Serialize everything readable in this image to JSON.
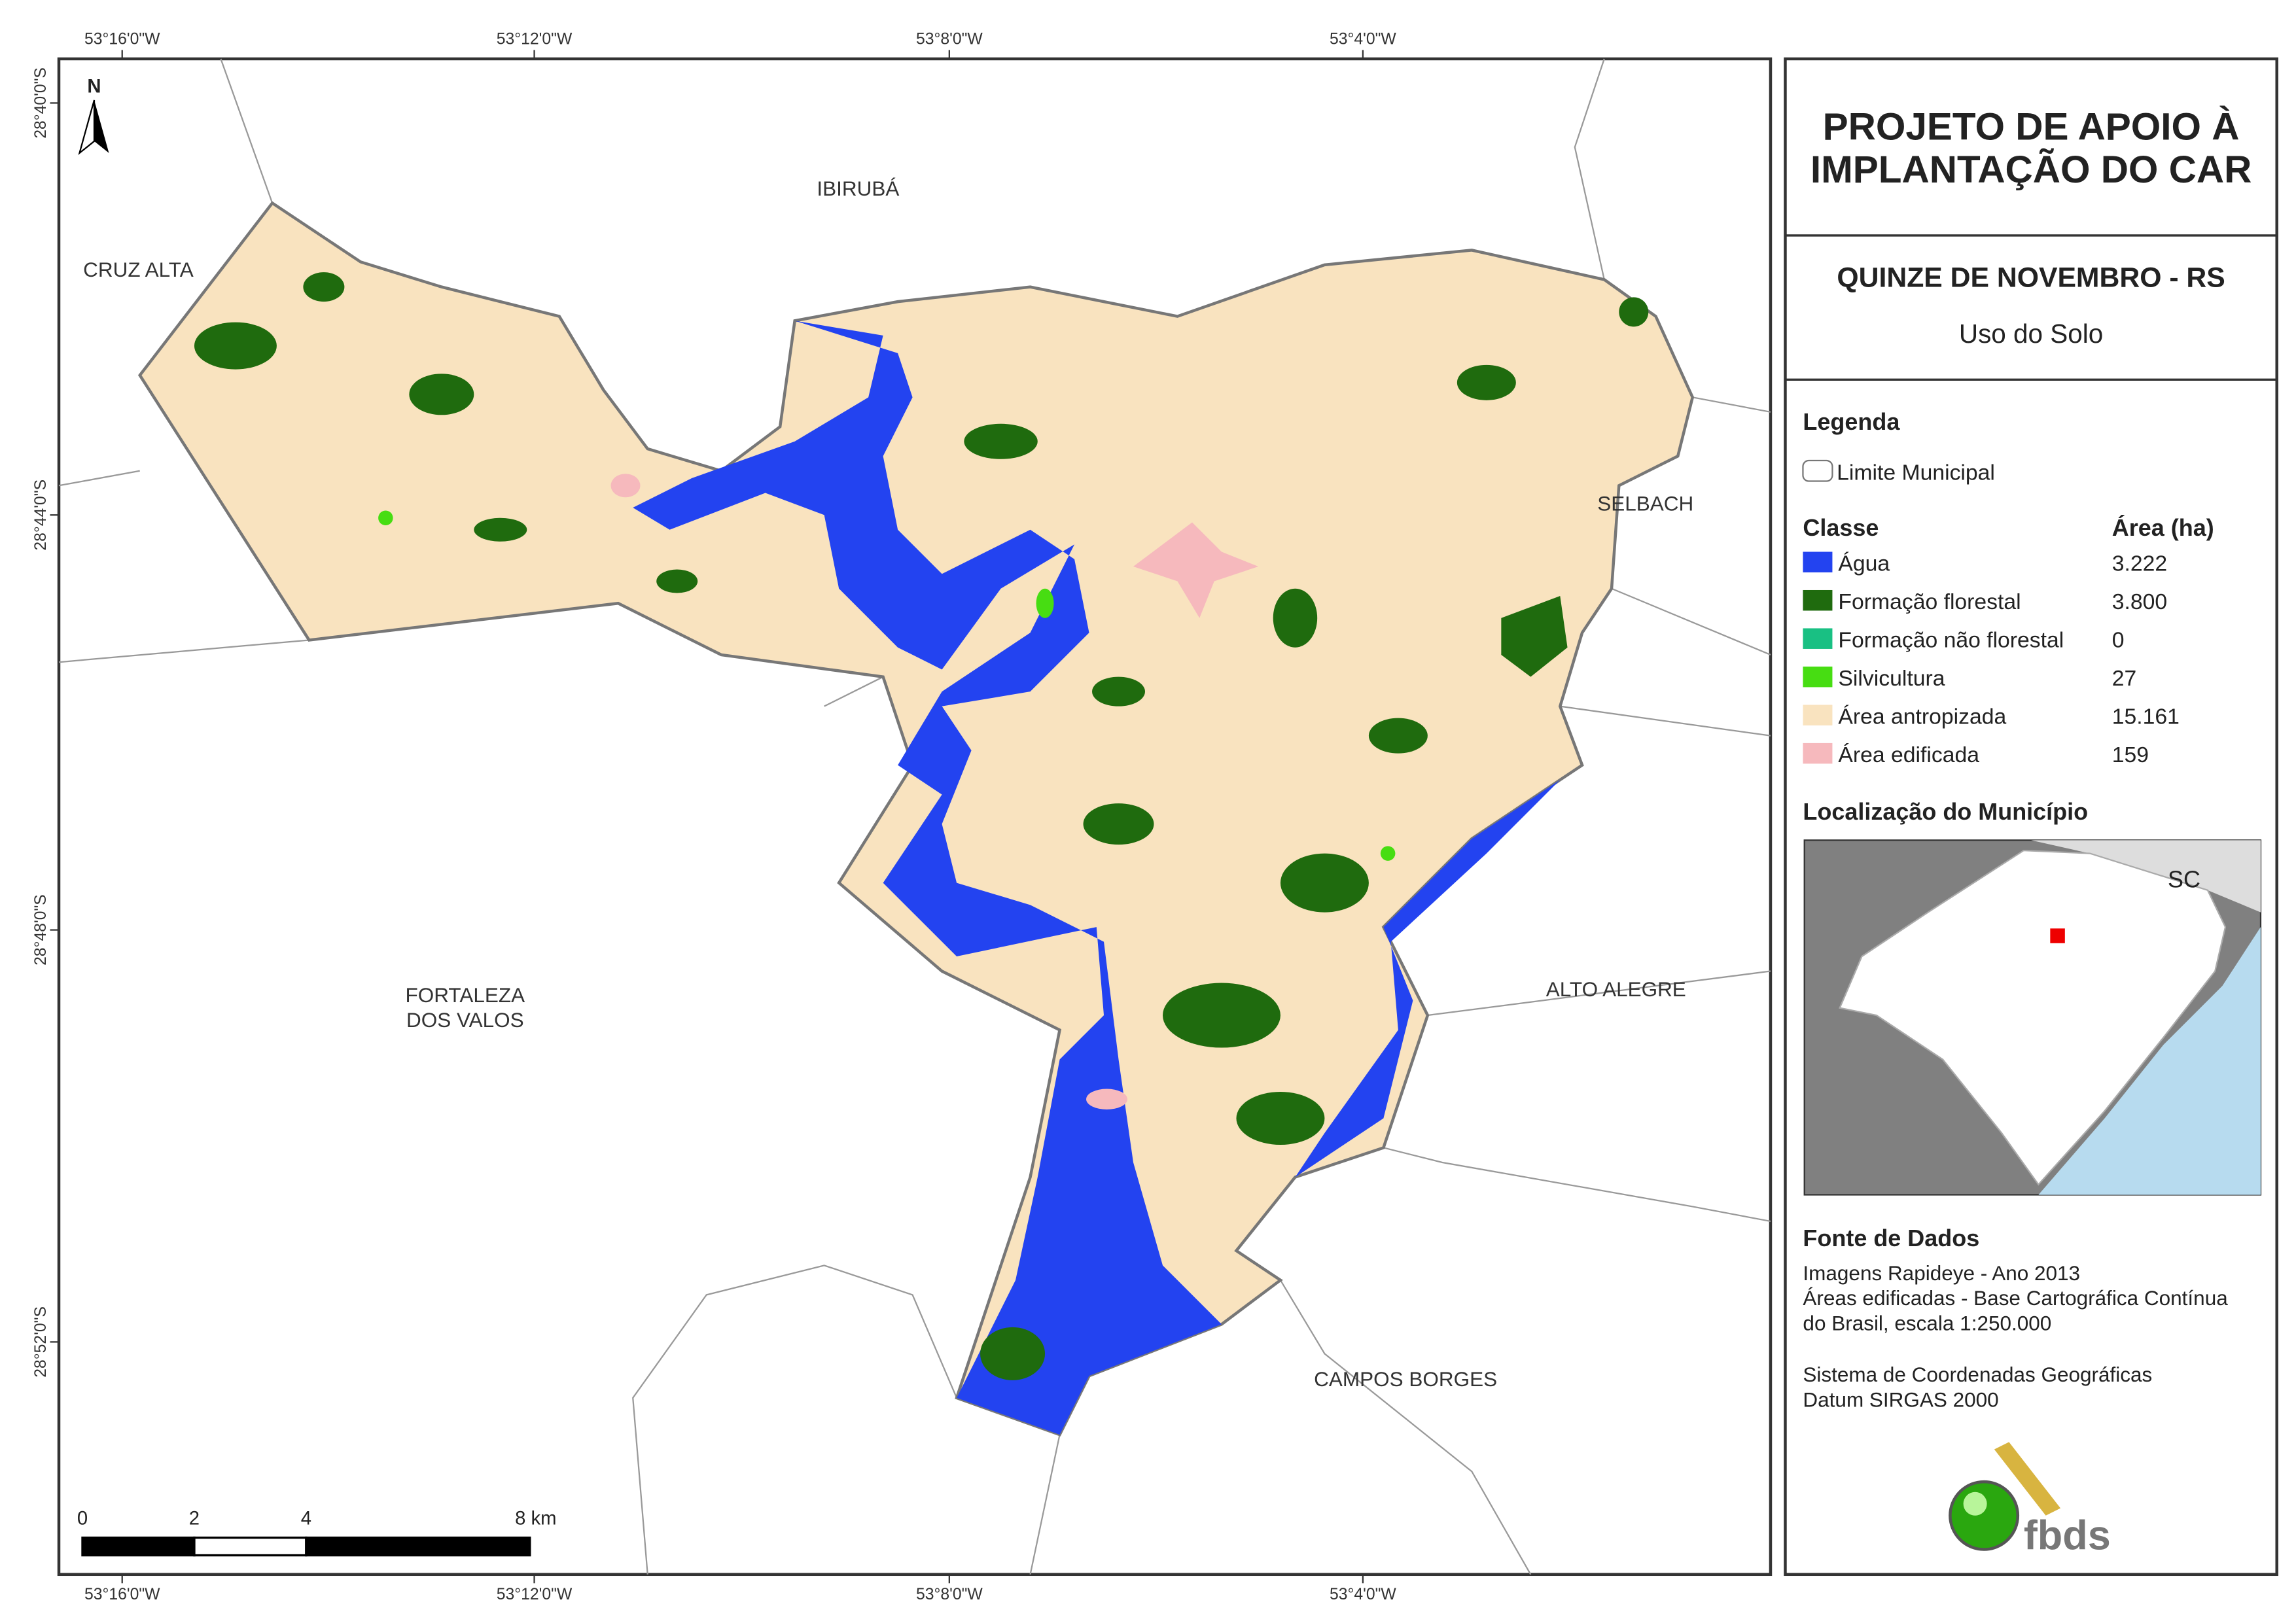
{
  "frame": {
    "top_labels": [
      "53°16'0\"W",
      "53°12'0\"W",
      "53°8'0\"W",
      "53°4'0\"W"
    ],
    "bottom_labels": [
      "53°16'0\"W",
      "53°12'0\"W",
      "53°8'0\"W",
      "53°4'0\"W"
    ],
    "left_labels": [
      "28°40'0\"S",
      "28°44'0\"S",
      "28°48'0\"S",
      "28°52'0\"S"
    ]
  },
  "map": {
    "north_arrow": "N",
    "neighbors": [
      "IBIRUBÁ",
      "CRUZ ALTA",
      "SELBACH",
      "FORTALEZA",
      "DOS VALOS",
      "ALTO ALEGRE",
      "CAMPOS BORGES"
    ],
    "scale_bar": {
      "ticks": [
        0,
        2,
        4,
        {
          "value": 8,
          "label": "8 km"
        }
      ]
    }
  },
  "panel": {
    "title": [
      "PROJETO DE APOIO À",
      "IMPLANTAÇÃO DO CAR"
    ],
    "municipality": "QUINZE DE NOVEMBRO - RS",
    "subtitle": "Uso do Solo",
    "legend": {
      "heading": "Legenda",
      "boundary": "Limite Municipal",
      "class_header": "Classe",
      "area_header": "Área (ha)",
      "rows": [
        [
          "Água",
          "3.222"
        ],
        [
          "Formação florestal",
          "3.800"
        ],
        [
          "Formação não florestal",
          "0"
        ],
        [
          "Silvicultura",
          "27"
        ],
        [
          "Área antropizada",
          "15.161"
        ],
        [
          "Área edificada",
          "159"
        ]
      ],
      "colors": [
        "#2343f0",
        "#1f6b0e",
        "#19c083",
        "#47dd12",
        "#f9e3bf",
        "#f6b9bd"
      ]
    },
    "location": {
      "heading": "Localização do Município",
      "neighbor_state": "SC"
    },
    "sources": {
      "heading": "Fonte de Dados",
      "lines": [
        "Imagens Rapideye - Ano 2013",
        "Áreas edificadas - Base Cartográfica Contínua",
        "do Brasil, escala 1:250.000",
        "Sistema de Coordenadas Geográficas",
        "Datum SIRGAS 2000"
      ]
    },
    "logo": "fbds"
  }
}
